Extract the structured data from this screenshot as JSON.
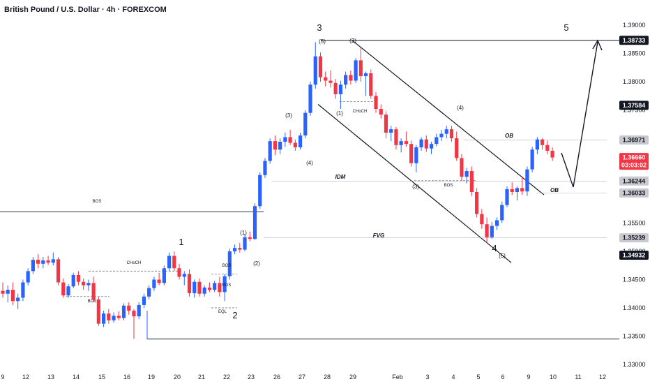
{
  "header": {
    "title": "British Pound / U.S. Dollar · 4h · FOREXCOM"
  },
  "colors": {
    "bull": "#2962ff",
    "bear": "#f23645",
    "line": "#131722",
    "grid_dash": "#787b86",
    "badge_dark": "#131722",
    "badge_grey": "#c9cacf",
    "badge_red": "#f23645"
  },
  "chart_data": {
    "type": "candlestick",
    "title": "British Pound / U.S. Dollar · 4h · FOREXCOM",
    "ylim": [
      1.329,
      1.392
    ],
    "y_ticks": [
      "1.39000",
      "1.38500",
      "1.38000",
      "1.37500",
      "1.37000",
      "1.36500",
      "1.36000",
      "1.35500",
      "1.35000",
      "1.34500",
      "1.34000",
      "1.33500",
      "1.33000"
    ],
    "x_ticks": [
      "9",
      "12",
      "13",
      "14",
      "15",
      "16",
      "19",
      "20",
      "21",
      "22",
      "23",
      "26",
      "27",
      "28",
      "29",
      "Feb",
      "3",
      "4",
      "5",
      "6",
      "9",
      "10",
      "11",
      "12"
    ],
    "price_badges": [
      {
        "label": "1.38733",
        "value": 1.38733,
        "style": "dark"
      },
      {
        "label": "1.37584",
        "value": 1.37584,
        "style": "dark"
      },
      {
        "label": "1.36971",
        "value": 1.36971,
        "style": "grey"
      },
      {
        "label": "1.36660",
        "sub": "03:03:02",
        "value": 1.3666,
        "style": "red"
      },
      {
        "label": "1.36244",
        "value": 1.36244,
        "style": "grey"
      },
      {
        "label": "1.36033",
        "value": 1.36033,
        "style": "grey"
      },
      {
        "label": "1.35239",
        "value": 1.35239,
        "style": "grey"
      },
      {
        "label": "1.34932",
        "value": 1.34932,
        "style": "dark"
      }
    ],
    "candles": [
      [
        1.343,
        1.3445,
        1.3418,
        1.3425
      ],
      [
        1.3425,
        1.344,
        1.341,
        1.3432
      ],
      [
        1.3432,
        1.3445,
        1.3405,
        1.3412
      ],
      [
        1.3412,
        1.3425,
        1.3398,
        1.3418
      ],
      [
        1.3418,
        1.345,
        1.3412,
        1.3445
      ],
      [
        1.3445,
        1.347,
        1.344,
        1.3465
      ],
      [
        1.3465,
        1.349,
        1.346,
        1.3485
      ],
      [
        1.3485,
        1.3495,
        1.347,
        1.3478
      ],
      [
        1.3478,
        1.349,
        1.347,
        1.3484
      ],
      [
        1.3484,
        1.3492,
        1.3476,
        1.348
      ],
      [
        1.348,
        1.3498,
        1.3475,
        1.3486
      ],
      [
        1.3486,
        1.349,
        1.344,
        1.3445
      ],
      [
        1.3445,
        1.3452,
        1.3418,
        1.3422
      ],
      [
        1.3422,
        1.3442,
        1.3418,
        1.3438
      ],
      [
        1.3438,
        1.3462,
        1.3435,
        1.3458
      ],
      [
        1.3458,
        1.3465,
        1.344,
        1.3446
      ],
      [
        1.3446,
        1.3452,
        1.3432,
        1.344
      ],
      [
        1.344,
        1.345,
        1.343,
        1.3444
      ],
      [
        1.3444,
        1.3455,
        1.341,
        1.3415
      ],
      [
        1.3415,
        1.342,
        1.3368,
        1.3372
      ],
      [
        1.3372,
        1.3395,
        1.3366,
        1.339
      ],
      [
        1.339,
        1.3398,
        1.3372,
        1.3378
      ],
      [
        1.3378,
        1.3392,
        1.3374,
        1.3386
      ],
      [
        1.3386,
        1.3394,
        1.3378,
        1.3382
      ],
      [
        1.3382,
        1.3408,
        1.3378,
        1.3404
      ],
      [
        1.3404,
        1.341,
        1.3388,
        1.3395
      ],
      [
        1.3395,
        1.3398,
        1.3345,
        1.3385
      ],
      [
        1.3385,
        1.341,
        1.338,
        1.3405
      ],
      [
        1.3405,
        1.3425,
        1.34,
        1.342
      ],
      [
        1.342,
        1.344,
        1.3415,
        1.3435
      ],
      [
        1.3435,
        1.3455,
        1.343,
        1.345
      ],
      [
        1.345,
        1.3462,
        1.344,
        1.3444
      ],
      [
        1.3444,
        1.3475,
        1.344,
        1.347
      ],
      [
        1.347,
        1.3498,
        1.3465,
        1.3492
      ],
      [
        1.3492,
        1.35,
        1.3465,
        1.347
      ],
      [
        1.347,
        1.3478,
        1.345,
        1.3455
      ],
      [
        1.3455,
        1.3465,
        1.344,
        1.346
      ],
      [
        1.346,
        1.3468,
        1.342,
        1.3426
      ],
      [
        1.3426,
        1.345,
        1.3418,
        1.3446
      ],
      [
        1.3446,
        1.3452,
        1.342,
        1.3425
      ],
      [
        1.3425,
        1.344,
        1.342,
        1.3436
      ],
      [
        1.3436,
        1.3445,
        1.3428,
        1.3432
      ],
      [
        1.3432,
        1.3448,
        1.3428,
        1.3444
      ],
      [
        1.3444,
        1.3455,
        1.342,
        1.3428
      ],
      [
        1.3428,
        1.346,
        1.3412,
        1.3456
      ],
      [
        1.3456,
        1.3505,
        1.345,
        1.35
      ],
      [
        1.35,
        1.3512,
        1.3495,
        1.3506
      ],
      [
        1.3506,
        1.3515,
        1.3498,
        1.3503
      ],
      [
        1.3503,
        1.353,
        1.35,
        1.3525
      ],
      [
        1.3525,
        1.3535,
        1.3518,
        1.3522
      ],
      [
        1.3522,
        1.3585,
        1.352,
        1.358
      ],
      [
        1.358,
        1.364,
        1.3575,
        1.3635
      ],
      [
        1.3635,
        1.3665,
        1.363,
        1.366
      ],
      [
        1.366,
        1.37,
        1.3655,
        1.3695
      ],
      [
        1.3695,
        1.3705,
        1.367,
        1.368
      ],
      [
        1.368,
        1.37,
        1.3672,
        1.3694
      ],
      [
        1.3694,
        1.371,
        1.3685,
        1.3702
      ],
      [
        1.3702,
        1.3715,
        1.3688,
        1.3692
      ],
      [
        1.3692,
        1.3698,
        1.3678,
        1.3684
      ],
      [
        1.3684,
        1.371,
        1.368,
        1.3705
      ],
      [
        1.3705,
        1.375,
        1.37,
        1.3745
      ],
      [
        1.3745,
        1.38,
        1.374,
        1.3795
      ],
      [
        1.3795,
        1.387,
        1.3788,
        1.3845
      ],
      [
        1.3845,
        1.3852,
        1.38,
        1.3808
      ],
      [
        1.3808,
        1.3818,
        1.3792,
        1.3802
      ],
      [
        1.3802,
        1.382,
        1.379,
        1.3798
      ],
      [
        1.3798,
        1.3805,
        1.377,
        1.3778
      ],
      [
        1.3778,
        1.3802,
        1.3752,
        1.3795
      ],
      [
        1.3795,
        1.3818,
        1.3788,
        1.3812
      ],
      [
        1.3812,
        1.382,
        1.3795,
        1.3802
      ],
      [
        1.3802,
        1.3842,
        1.3798,
        1.3838
      ],
      [
        1.3838,
        1.386,
        1.38,
        1.381
      ],
      [
        1.381,
        1.3818,
        1.3775,
        1.3815
      ],
      [
        1.3815,
        1.3822,
        1.377,
        1.3775
      ],
      [
        1.3775,
        1.3782,
        1.3745,
        1.3752
      ],
      [
        1.3752,
        1.376,
        1.3735,
        1.3742
      ],
      [
        1.3742,
        1.3748,
        1.37,
        1.371
      ],
      [
        1.371,
        1.3722,
        1.3695,
        1.3716
      ],
      [
        1.3716,
        1.372,
        1.368,
        1.3688
      ],
      [
        1.3688,
        1.37,
        1.3675,
        1.3695
      ],
      [
        1.3695,
        1.3712,
        1.3685,
        1.369
      ],
      [
        1.369,
        1.3696,
        1.365,
        1.3656
      ],
      [
        1.3656,
        1.3688,
        1.364,
        1.3684
      ],
      [
        1.3684,
        1.3702,
        1.3678,
        1.3698
      ],
      [
        1.3698,
        1.3705,
        1.3676,
        1.3682
      ],
      [
        1.3682,
        1.3694,
        1.3672,
        1.369
      ],
      [
        1.369,
        1.3708,
        1.3686,
        1.3702
      ],
      [
        1.3702,
        1.3715,
        1.3695,
        1.3708
      ],
      [
        1.3708,
        1.3722,
        1.37,
        1.3716
      ],
      [
        1.3716,
        1.3722,
        1.3694,
        1.37
      ],
      [
        1.37,
        1.3712,
        1.366,
        1.3665
      ],
      [
        1.3665,
        1.3672,
        1.3625,
        1.3632
      ],
      [
        1.3632,
        1.3648,
        1.362,
        1.3642
      ],
      [
        1.3642,
        1.365,
        1.3598,
        1.3605
      ],
      [
        1.3605,
        1.3612,
        1.356,
        1.3566
      ],
      [
        1.3566,
        1.3575,
        1.354,
        1.3548
      ],
      [
        1.3548,
        1.356,
        1.3515,
        1.3525
      ],
      [
        1.3525,
        1.3552,
        1.3522,
        1.3545
      ],
      [
        1.3545,
        1.356,
        1.3538,
        1.3555
      ],
      [
        1.3555,
        1.3588,
        1.355,
        1.3582
      ],
      [
        1.3582,
        1.3615,
        1.3578,
        1.361
      ],
      [
        1.361,
        1.3622,
        1.36,
        1.3605
      ],
      [
        1.3605,
        1.3615,
        1.359,
        1.3612
      ],
      [
        1.3612,
        1.3632,
        1.36,
        1.3606
      ],
      [
        1.3606,
        1.365,
        1.3598,
        1.3645
      ],
      [
        1.3645,
        1.3685,
        1.364,
        1.368
      ],
      [
        1.368,
        1.3702,
        1.3672,
        1.3698
      ],
      [
        1.3698,
        1.37,
        1.368,
        1.3688
      ],
      [
        1.3688,
        1.3696,
        1.3672,
        1.3678
      ],
      [
        1.3678,
        1.3684,
        1.366,
        1.3666
      ]
    ],
    "lines": {
      "top_horizontal": 1.38733,
      "bottom_horizontal": 1.3345,
      "left_bos": 1.357,
      "channel_upper": [
        [
          1.38733,
          1.36
        ]
      ],
      "channel_lower": [
        [
          1.376,
          1.348
        ]
      ]
    },
    "annotations": {
      "waves_major": [
        "3",
        "5",
        "1",
        "2",
        "4"
      ],
      "waves_minor": [
        "(5)",
        "(2)",
        "(1)",
        "(3)",
        "(4)",
        "(4)",
        "(3)",
        "(1)",
        "(2)",
        "(5)"
      ],
      "structure": [
        "BOS",
        "CHoCH",
        "BOS",
        "CHoCH",
        "BOS",
        "EQL",
        "BOS",
        "BOS"
      ],
      "zones": [
        "OB",
        "OB",
        "IDM",
        "FVG"
      ]
    }
  }
}
